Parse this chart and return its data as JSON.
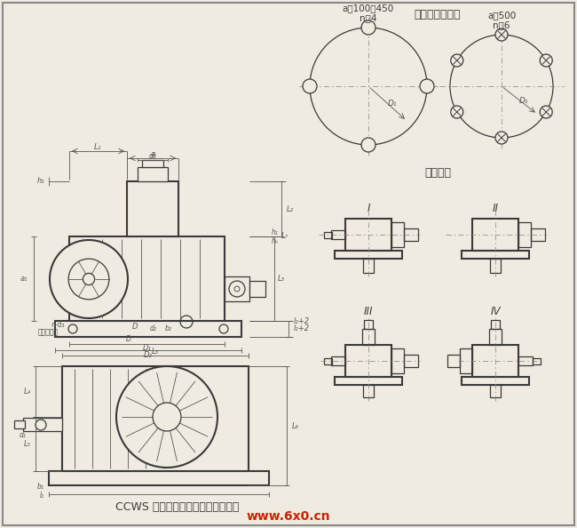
{
  "bg_color": "#f0ebe0",
  "line_color": "#3a3a3a",
  "dim_color": "#555555",
  "title": "CCWS 型双级螓杆减速器及装配型式",
  "watermark_text": "www.6x0.cn",
  "watermark_color": "#cc2200",
  "bolt_title": "地脚螺栓孔位置",
  "assembly_title": "装配型式",
  "c1_line1": "a＝100～450",
  "c1_line2": "n＝4",
  "c2_line1": "a＝500",
  "c2_line2": "n＝6",
  "ndots_label": "n-d₃",
  "bolt_hole_label": "地脚螺栓孔"
}
